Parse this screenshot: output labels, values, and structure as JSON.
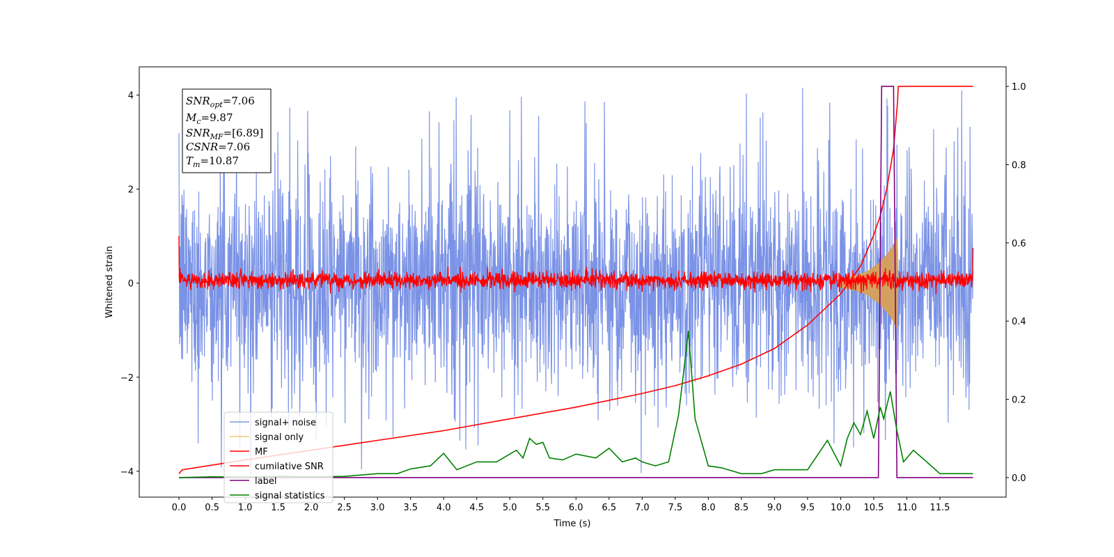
{
  "chart_data": {
    "type": "line",
    "xlabel": "Time (s)",
    "ylabel": "Whitened strain",
    "xlim": [
      -0.6,
      12.5
    ],
    "ylim": [
      -4.55,
      4.6
    ],
    "y2lim": [
      -0.05,
      1.05
    ],
    "x_ticks": [
      "0.0",
      "0.5",
      "1.0",
      "1.5",
      "2.0",
      "2.5",
      "3.0",
      "3.5",
      "4.0",
      "4.5",
      "5.0",
      "5.5",
      "6.0",
      "6.5",
      "7.0",
      "7.5",
      "8.0",
      "8.5",
      "9.0",
      "9.5",
      "10.0",
      "10.5",
      "11.0",
      "11.5"
    ],
    "y_ticks": [
      "4",
      "2",
      "0",
      "−2",
      "−4"
    ],
    "y2_ticks": [
      "1.0",
      "0.8",
      "0.6",
      "0.4",
      "0.2",
      "0.0"
    ],
    "grid": false,
    "legend_position": "lower-left",
    "annotation": {
      "snr_opt": {
        "base": "SNR",
        "sub": "opt",
        "value": "=7.06"
      },
      "mc": {
        "base": "M",
        "sub": "c",
        "value": "=9.87"
      },
      "snr_mf": {
        "base": "SNR",
        "sub": "MF",
        "value": "=[6.89]"
      },
      "csnr": {
        "base": "CSNR",
        "value": "=7.06"
      },
      "tm": {
        "base": "T",
        "sub": "m",
        "value": "=10.87"
      }
    },
    "series": [
      {
        "name": "signal+ noise",
        "color": "#7b93e6",
        "axis": "left",
        "description_values": {
          "x_range": [
            0.0,
            12.0
          ],
          "typical_range": [
            -2.2,
            2.2
          ],
          "peak_max": 4.15,
          "peak_min": -4.1
        }
      },
      {
        "name": "signal only",
        "color": "#f5c872",
        "axis": "left",
        "envelope": {
          "x": [
            10.0,
            10.2,
            10.4,
            10.6,
            10.75,
            10.85,
            10.87
          ],
          "amp": [
            0.1,
            0.15,
            0.25,
            0.45,
            0.7,
            0.95,
            0.0
          ]
        }
      },
      {
        "name": "MF",
        "color": "#ff0000",
        "axis": "left",
        "description_values": {
          "x_range": [
            0.0,
            12.0
          ],
          "typical_range": [
            -0.2,
            0.35
          ],
          "start_value": 1.0,
          "end_value": 0.75
        }
      },
      {
        "name": "cumilative SNR",
        "color": "#ff0000",
        "axis": "right",
        "x": [
          0.0,
          0.05,
          1.0,
          2.0,
          3.0,
          4.0,
          5.0,
          6.0,
          7.0,
          7.5,
          8.0,
          8.5,
          9.0,
          9.5,
          10.0,
          10.3,
          10.5,
          10.6,
          10.7,
          10.8,
          10.86,
          10.87,
          12.0
        ],
        "values": [
          0.01,
          0.02,
          0.045,
          0.07,
          0.095,
          0.12,
          0.15,
          0.18,
          0.215,
          0.235,
          0.26,
          0.29,
          0.33,
          0.39,
          0.47,
          0.54,
          0.62,
          0.67,
          0.74,
          0.84,
          0.96,
          1.0,
          1.0
        ]
      },
      {
        "name": "label",
        "color": "#800080",
        "axis": "right",
        "x": [
          0.0,
          10.57,
          10.62,
          10.8,
          10.85,
          12.0
        ],
        "values": [
          0.0,
          0.0,
          1.0,
          1.0,
          0.0,
          0.0
        ]
      },
      {
        "name": "signal statistics",
        "color": "#008000",
        "axis": "right",
        "x": [
          0.0,
          0.5,
          1.0,
          1.5,
          2.0,
          2.5,
          3.0,
          3.3,
          3.5,
          3.8,
          4.0,
          4.2,
          4.5,
          4.8,
          5.0,
          5.1,
          5.2,
          5.3,
          5.4,
          5.5,
          5.6,
          5.8,
          6.0,
          6.3,
          6.5,
          6.7,
          6.9,
          7.0,
          7.2,
          7.4,
          7.55,
          7.7,
          7.8,
          8.0,
          8.2,
          8.5,
          8.8,
          9.0,
          9.5,
          9.8,
          10.0,
          10.1,
          10.2,
          10.3,
          10.4,
          10.5,
          10.6,
          10.65,
          10.75,
          10.85,
          10.95,
          11.1,
          11.3,
          11.5,
          11.8,
          12.0
        ],
        "values": [
          0.0,
          0.002,
          0.001,
          0.003,
          0.002,
          0.003,
          0.01,
          0.01,
          0.022,
          0.03,
          0.062,
          0.02,
          0.04,
          0.04,
          0.06,
          0.07,
          0.05,
          0.1,
          0.085,
          0.09,
          0.05,
          0.045,
          0.06,
          0.05,
          0.075,
          0.04,
          0.05,
          0.04,
          0.03,
          0.04,
          0.16,
          0.375,
          0.15,
          0.03,
          0.025,
          0.01,
          0.01,
          0.02,
          0.02,
          0.095,
          0.03,
          0.1,
          0.14,
          0.11,
          0.17,
          0.1,
          0.18,
          0.15,
          0.22,
          0.12,
          0.04,
          0.07,
          0.04,
          0.01,
          0.01,
          0.01
        ]
      }
    ]
  }
}
